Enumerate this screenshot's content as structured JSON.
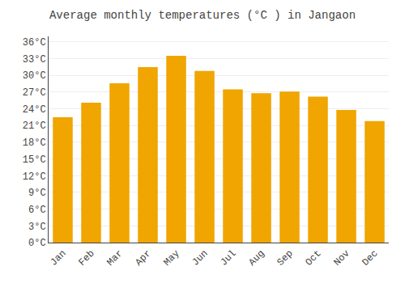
{
  "chart_data": {
    "type": "bar",
    "title": "Average monthly temperatures (°C ) in Jangaon",
    "categories": [
      "Jan",
      "Feb",
      "Mar",
      "Apr",
      "May",
      "Jun",
      "Jul",
      "Aug",
      "Sep",
      "Oct",
      "Nov",
      "Dec"
    ],
    "values": [
      22.5,
      25.1,
      28.6,
      31.5,
      33.5,
      30.8,
      27.5,
      26.8,
      27.1,
      26.2,
      23.8,
      21.8
    ],
    "color": "#F0A500",
    "ylim": [
      0,
      37
    ],
    "yticks": [
      {
        "value": 0,
        "label": "0°C"
      },
      {
        "value": 3,
        "label": "3°C"
      },
      {
        "value": 6,
        "label": "6°C"
      },
      {
        "value": 9,
        "label": "9°C"
      },
      {
        "value": 12,
        "label": "12°C"
      },
      {
        "value": 15,
        "label": "15°C"
      },
      {
        "value": 18,
        "label": "18°C"
      },
      {
        "value": 21,
        "label": "21°C"
      },
      {
        "value": 24,
        "label": "24°C"
      },
      {
        "value": 27,
        "label": "27°C"
      },
      {
        "value": 30,
        "label": "30°C"
      },
      {
        "value": 33,
        "label": "33°C"
      },
      {
        "value": 36,
        "label": "36°C"
      }
    ],
    "grid": true
  }
}
